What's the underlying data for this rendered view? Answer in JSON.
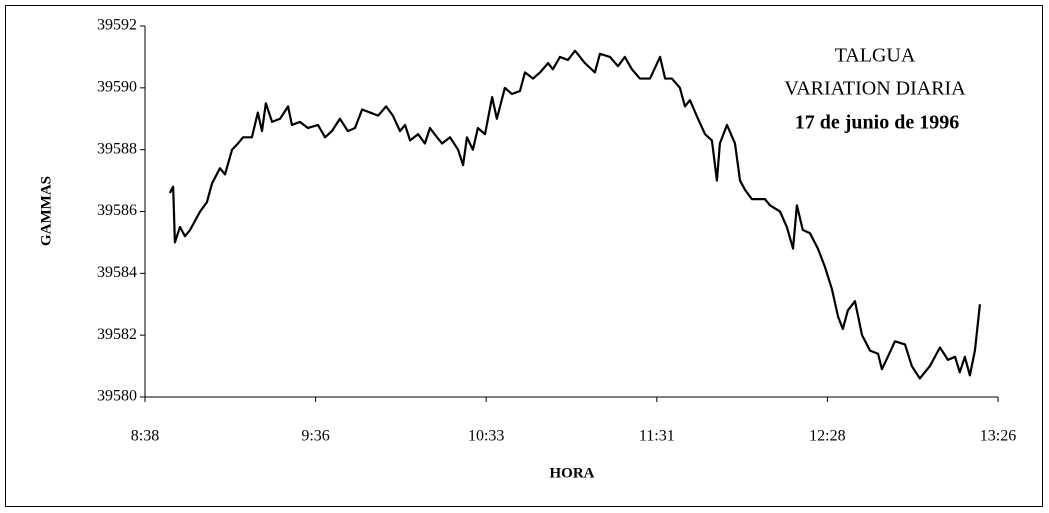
{
  "chart_data": {
    "type": "line",
    "title": [
      "TALGUA",
      "VARIATION DIARIA",
      "17 de junio de 1996"
    ],
    "xlabel": "HORA",
    "ylabel": "GAMMAS",
    "xlim": [
      518,
      806
    ],
    "xticks": [
      {
        "value": 518,
        "label": "8:38"
      },
      {
        "value": 575.6,
        "label": "9:36"
      },
      {
        "value": 633.2,
        "label": "10:33"
      },
      {
        "value": 690.8,
        "label": "11:31"
      },
      {
        "value": 748.4,
        "label": "12:28"
      },
      {
        "value": 806,
        "label": "13:26"
      }
    ],
    "ylim": [
      39580,
      39592
    ],
    "yticks": [
      39580,
      39582,
      39584,
      39586,
      39588,
      39590,
      39592
    ],
    "grid": false,
    "series": [
      {
        "color": "#000000",
        "x": [
          526.4,
          527.5,
          528.1,
          529.8,
          531.5,
          533.2,
          534.9,
          536.6,
          538.9,
          540.6,
          543.3,
          545.0,
          547.4,
          549.4,
          551.1,
          554.1,
          556.1,
          557.5,
          558.8,
          560.9,
          563.6,
          566.3,
          567.6,
          570.3,
          573.0,
          576.4,
          578.8,
          581.1,
          583.8,
          586.5,
          588.9,
          591.3,
          594.0,
          596.7,
          599.4,
          601.7,
          604.1,
          605.8,
          607.5,
          610.2,
          612.5,
          614.2,
          616.6,
          618.3,
          621.0,
          623.7,
          625.4,
          626.7,
          628.7,
          630.4,
          632.8,
          635.2,
          636.8,
          639.5,
          641.9,
          644.6,
          646.3,
          649.0,
          651.4,
          654.1,
          655.7,
          658.1,
          660.8,
          663.2,
          666.5,
          669.9,
          671.6,
          675.0,
          677.7,
          680.0,
          682.4,
          685.1,
          688.5,
          691.9,
          693.6,
          695.9,
          698.6,
          700.3,
          702.0,
          704.7,
          707.1,
          709.4,
          711.1,
          712.1,
          714.5,
          717.2,
          718.9,
          720.6,
          722.9,
          727.3,
          729.0,
          732.4,
          734.7,
          736.8,
          738.1,
          740.1,
          742.5,
          745.2,
          747.6,
          749.9,
          752.0,
          753.6,
          755.3,
          757.7,
          760.1,
          762.8,
          765.5,
          766.8,
          768.8,
          771.2,
          774.6,
          776.9,
          779.6,
          783.0,
          786.4,
          789.1,
          791.5,
          793.1,
          794.8,
          796.5,
          798.2,
          799.9
        ],
        "values": [
          39586.6,
          39586.8,
          39585.0,
          39585.5,
          39585.2,
          39585.4,
          39585.7,
          39586.0,
          39586.3,
          39586.9,
          39587.4,
          39587.2,
          39588.0,
          39588.2,
          39588.4,
          39588.4,
          39589.2,
          39588.6,
          39589.5,
          39588.9,
          39589.0,
          39589.4,
          39588.8,
          39588.9,
          39588.7,
          39588.8,
          39588.4,
          39588.6,
          39589.0,
          39588.6,
          39588.7,
          39589.3,
          39589.2,
          39589.1,
          39589.4,
          39589.1,
          39588.6,
          39588.8,
          39588.3,
          39588.5,
          39588.2,
          39588.7,
          39588.4,
          39588.2,
          39588.4,
          39588.0,
          39587.5,
          39588.4,
          39588.0,
          39588.7,
          39588.5,
          39589.7,
          39589.0,
          39590.0,
          39589.8,
          39589.9,
          39590.5,
          39590.3,
          39590.5,
          39590.8,
          39590.6,
          39591.0,
          39590.9,
          39591.2,
          39590.8,
          39590.5,
          39591.1,
          39591.0,
          39590.7,
          39591.0,
          39590.6,
          39590.3,
          39590.3,
          39591.0,
          39590.3,
          39590.3,
          39590.0,
          39589.4,
          39589.6,
          39589.0,
          39588.5,
          39588.3,
          39587.0,
          39588.2,
          39588.8,
          39588.2,
          39587.0,
          39586.7,
          39586.4,
          39586.4,
          39586.2,
          39586.0,
          39585.5,
          39584.8,
          39586.2,
          39585.4,
          39585.3,
          39584.8,
          39584.2,
          39583.5,
          39582.6,
          39582.2,
          39582.8,
          39583.1,
          39582.0,
          39581.5,
          39581.4,
          39580.9,
          39581.3,
          39581.8,
          39581.7,
          39581.0,
          39580.6,
          39581.0,
          39581.6,
          39581.2,
          39581.3,
          39580.8,
          39581.3,
          39580.7,
          39581.5,
          39583.0
        ]
      }
    ]
  }
}
